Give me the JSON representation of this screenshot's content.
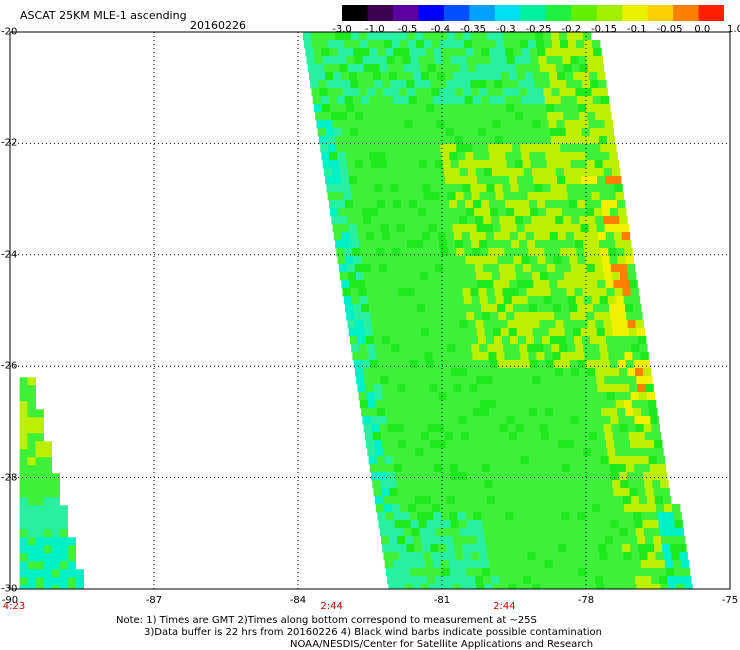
{
  "header": {
    "title": "ASCAT 25KM MLE-1 ascending",
    "date": "20160226"
  },
  "colorbar": {
    "labels": [
      "-3.0",
      "-1.0",
      "-0.5",
      "-0.4",
      "-0.35",
      "-0.3",
      "-0.25",
      "-0.2",
      "-0.15",
      "-0.1",
      "-0.05",
      "0.0",
      "1.0"
    ],
    "colors": [
      "#000000",
      "#3c0050",
      "#5a00a0",
      "#0000ff",
      "#0050ff",
      "#00a0ff",
      "#00e0f0",
      "#00f0a0",
      "#20f040",
      "#60f000",
      "#a0f000",
      "#e8f000",
      "#ffd000",
      "#ff8000",
      "#ff2000"
    ]
  },
  "map": {
    "lat_labels": [
      "-20",
      "-22",
      "-24",
      "-26",
      "-28",
      "-30"
    ],
    "lon_labels": [
      "-90",
      "-87",
      "-84",
      "-81",
      "-78",
      "-75"
    ],
    "lat_range": [
      -30,
      -20
    ],
    "lon_range": [
      -90,
      -75
    ],
    "grid": true,
    "time_labels": [
      {
        "text": "4:23",
        "lon": -90
      },
      {
        "text": "2:44",
        "lon": -83.3
      },
      {
        "text": "2:44",
        "lon": -79.7
      }
    ],
    "swaths": [
      {
        "name": "main-swath",
        "top_lon": [
          -83.9,
          -77.9
        ],
        "bottom_lon": [
          -82.1,
          -75.9
        ]
      },
      {
        "name": "west-swath",
        "top_lat": -26.2,
        "top_lon": [
          -89.8,
          -89.6
        ],
        "bottom_lon": [
          -89.8,
          -88.5
        ]
      }
    ],
    "colors": {
      "base": "#3ef03a",
      "green_dark": "#1ee81e",
      "yellowish": "#bcf000",
      "yellow": "#f0f000",
      "orange": "#ff8000",
      "cyan": "#00f0c8",
      "cyan_light": "#28f0a0"
    }
  },
  "notes": {
    "line1": "Note: 1) Times are GMT 2)Times along bottom correspond to measurement at ~25S",
    "line2": "3)Data buffer is 22 hrs from 20160226 4) Black wind barbs indicate possible contamination",
    "line3": "NOAA/NESDIS/Center for Satellite Applications and Research"
  }
}
